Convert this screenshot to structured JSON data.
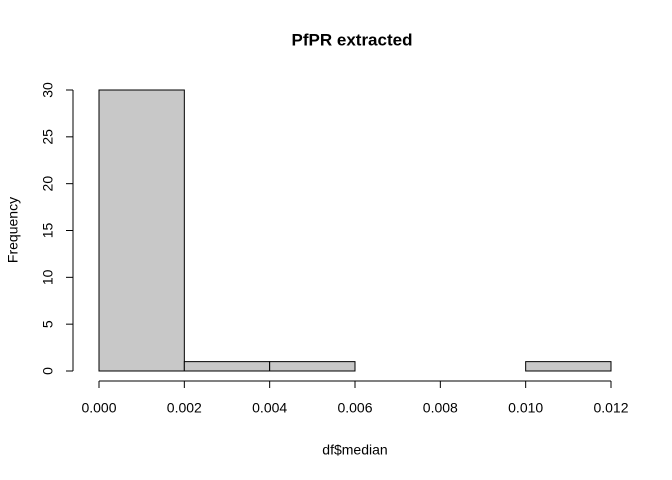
{
  "chart_data": {
    "type": "histogram",
    "title": "PfPR extracted",
    "x_label": "df$median",
    "y_label": "Frequency",
    "bins": [
      0,
      0.002,
      0.004,
      0.006,
      0.008,
      0.01,
      0.012
    ],
    "values": [
      30,
      1,
      1,
      0,
      0,
      1
    ],
    "color": "#c8c8c8",
    "xlim": [
      0,
      0.012
    ],
    "xticks": [
      {
        "value": 0,
        "label": "0.000"
      },
      0.002,
      0.004,
      0.006,
      0.008,
      {
        "value": 0.01,
        "label": "0.010"
      },
      0.012
    ],
    "ylim": [
      0,
      30
    ],
    "yticks": [
      0,
      5,
      10,
      15,
      20,
      25,
      30
    ]
  }
}
